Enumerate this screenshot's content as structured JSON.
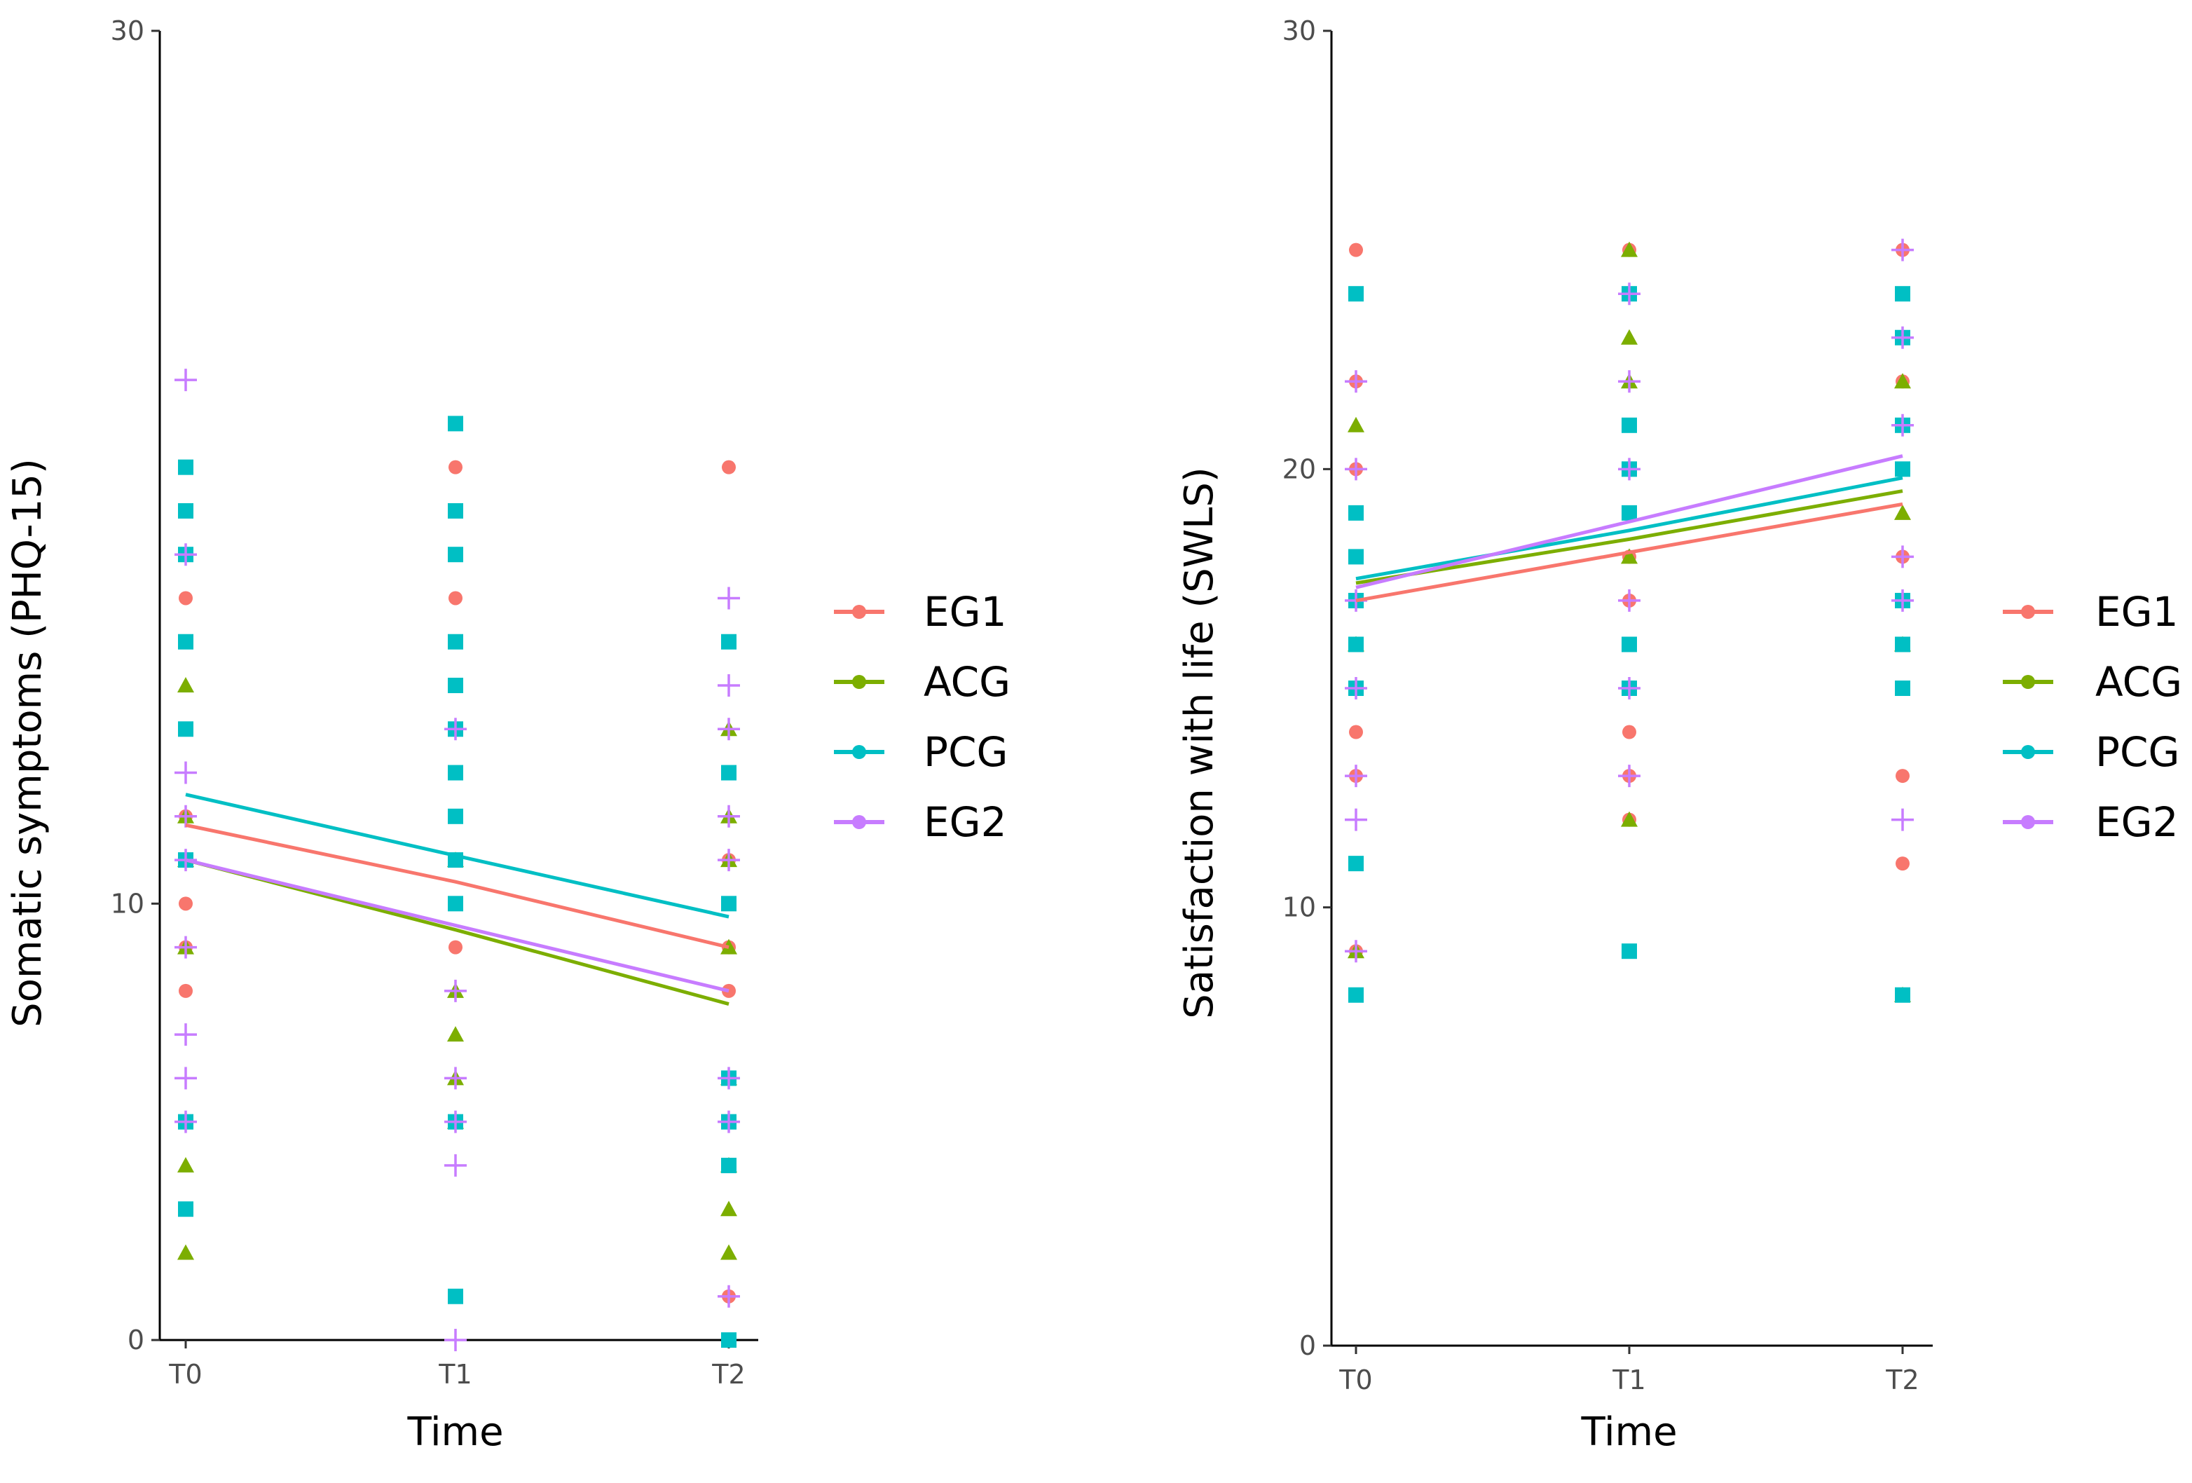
{
  "colors": {
    "EG1": "#F8766D",
    "ACG": "#7CAE00",
    "PCG": "#00BFC4",
    "EG2": "#C77CFF"
  },
  "chart_data": [
    {
      "type": "scatter",
      "title": "",
      "xlabel": "Time",
      "ylabel": "Somatic symptoms (PHQ-15)",
      "x_categories": [
        "T0",
        "T1",
        "T2"
      ],
      "ylim": [
        0,
        30
      ],
      "y_ticks": [
        "0",
        "10",
        "30"
      ],
      "legend": {
        "position": "right",
        "entries": [
          "EG1",
          "ACG",
          "PCG",
          "EG2"
        ]
      },
      "trend_lines": [
        {
          "name": "EG1",
          "values": [
            11.8,
            10.5,
            9.0
          ]
        },
        {
          "name": "ACG",
          "values": [
            11.0,
            9.4,
            7.7
          ]
        },
        {
          "name": "PCG",
          "values": [
            12.5,
            11.1,
            9.7
          ]
        },
        {
          "name": "EG2",
          "values": [
            11.0,
            9.5,
            8.0
          ]
        }
      ],
      "points": {
        "EG1": [
          [
            0,
            20
          ],
          [
            0,
            17
          ],
          [
            0,
            14
          ],
          [
            0,
            12
          ],
          [
            0,
            11
          ],
          [
            0,
            10
          ],
          [
            0,
            9
          ],
          [
            0,
            8
          ],
          [
            1,
            21
          ],
          [
            1,
            20
          ],
          [
            1,
            17
          ],
          [
            1,
            14
          ],
          [
            1,
            11
          ],
          [
            1,
            9
          ],
          [
            2,
            20
          ],
          [
            2,
            11
          ],
          [
            2,
            9
          ],
          [
            2,
            8
          ],
          [
            2,
            6
          ],
          [
            2,
            1
          ]
        ],
        "ACG": [
          [
            0,
            15
          ],
          [
            0,
            12
          ],
          [
            0,
            11
          ],
          [
            0,
            9
          ],
          [
            0,
            4
          ],
          [
            0,
            2
          ],
          [
            1,
            11
          ],
          [
            1,
            8
          ],
          [
            1,
            7
          ],
          [
            1,
            6
          ],
          [
            1,
            5
          ],
          [
            2,
            14
          ],
          [
            2,
            12
          ],
          [
            2,
            11
          ],
          [
            2,
            9
          ],
          [
            2,
            6
          ],
          [
            2,
            4
          ],
          [
            2,
            3
          ],
          [
            2,
            2
          ]
        ],
        "PCG": [
          [
            0,
            20
          ],
          [
            0,
            19
          ],
          [
            0,
            18
          ],
          [
            0,
            16
          ],
          [
            0,
            14
          ],
          [
            0,
            11
          ],
          [
            0,
            5
          ],
          [
            0,
            3
          ],
          [
            1,
            21
          ],
          [
            1,
            19
          ],
          [
            1,
            18
          ],
          [
            1,
            16
          ],
          [
            1,
            15
          ],
          [
            1,
            14
          ],
          [
            1,
            13
          ],
          [
            1,
            12
          ],
          [
            1,
            11
          ],
          [
            1,
            10
          ],
          [
            1,
            5
          ],
          [
            1,
            1
          ],
          [
            2,
            16
          ],
          [
            2,
            13
          ],
          [
            2,
            10
          ],
          [
            2,
            6
          ],
          [
            2,
            5
          ],
          [
            2,
            4
          ],
          [
            2,
            0
          ]
        ],
        "EG2": [
          [
            0,
            22
          ],
          [
            0,
            18
          ],
          [
            0,
            13
          ],
          [
            0,
            12
          ],
          [
            0,
            11
          ],
          [
            0,
            9
          ],
          [
            0,
            7
          ],
          [
            0,
            6
          ],
          [
            0,
            5
          ],
          [
            1,
            14
          ],
          [
            1,
            8
          ],
          [
            1,
            6
          ],
          [
            1,
            5
          ],
          [
            1,
            4
          ],
          [
            1,
            0
          ],
          [
            2,
            17
          ],
          [
            2,
            15
          ],
          [
            2,
            14
          ],
          [
            2,
            12
          ],
          [
            2,
            11
          ],
          [
            2,
            6
          ],
          [
            2,
            5
          ],
          [
            2,
            1
          ]
        ]
      }
    },
    {
      "type": "scatter",
      "title": "",
      "xlabel": "Time",
      "ylabel": "Satisfaction with life (SWLS)",
      "x_categories": [
        "T0",
        "T1",
        "T2"
      ],
      "ylim": [
        0,
        30
      ],
      "y_ticks": [
        "0",
        "10",
        "20",
        "30"
      ],
      "legend": {
        "position": "right",
        "entries": [
          "EG1",
          "ACG",
          "PCG",
          "EG2"
        ]
      },
      "trend_lines": [
        {
          "name": "EG1",
          "values": [
            17.0,
            18.1,
            19.2
          ]
        },
        {
          "name": "ACG",
          "values": [
            17.4,
            18.4,
            19.5
          ]
        },
        {
          "name": "PCG",
          "values": [
            17.5,
            18.6,
            19.8
          ]
        },
        {
          "name": "EG2",
          "values": [
            17.3,
            18.8,
            20.3
          ]
        }
      ],
      "points": {
        "EG1": [
          [
            0,
            25
          ],
          [
            0,
            24
          ],
          [
            0,
            22
          ],
          [
            0,
            20
          ],
          [
            0,
            18
          ],
          [
            0,
            16
          ],
          [
            0,
            14
          ],
          [
            0,
            13
          ],
          [
            0,
            9
          ],
          [
            1,
            25
          ],
          [
            1,
            24
          ],
          [
            1,
            21
          ],
          [
            1,
            18
          ],
          [
            1,
            17
          ],
          [
            1,
            15
          ],
          [
            1,
            14
          ],
          [
            1,
            13
          ],
          [
            1,
            12
          ],
          [
            2,
            25
          ],
          [
            2,
            22
          ],
          [
            2,
            18
          ],
          [
            2,
            15
          ],
          [
            2,
            13
          ],
          [
            2,
            11
          ]
        ],
        "ACG": [
          [
            0,
            21
          ],
          [
            0,
            16
          ],
          [
            0,
            9
          ],
          [
            1,
            25
          ],
          [
            1,
            23
          ],
          [
            1,
            22
          ],
          [
            1,
            18
          ],
          [
            1,
            12
          ],
          [
            2,
            22
          ],
          [
            2,
            19
          ],
          [
            2,
            16
          ],
          [
            2,
            8
          ]
        ],
        "PCG": [
          [
            0,
            24
          ],
          [
            0,
            19
          ],
          [
            0,
            18
          ],
          [
            0,
            17
          ],
          [
            0,
            16
          ],
          [
            0,
            15
          ],
          [
            0,
            11
          ],
          [
            0,
            8
          ],
          [
            1,
            24
          ],
          [
            1,
            21
          ],
          [
            1,
            20
          ],
          [
            1,
            19
          ],
          [
            1,
            16
          ],
          [
            1,
            15
          ],
          [
            1,
            9
          ],
          [
            2,
            24
          ],
          [
            2,
            23
          ],
          [
            2,
            21
          ],
          [
            2,
            20
          ],
          [
            2,
            17
          ],
          [
            2,
            16
          ],
          [
            2,
            15
          ],
          [
            2,
            8
          ]
        ],
        "EG2": [
          [
            0,
            22
          ],
          [
            0,
            20
          ],
          [
            0,
            17
          ],
          [
            0,
            15
          ],
          [
            0,
            13
          ],
          [
            0,
            12
          ],
          [
            0,
            9
          ],
          [
            1,
            24
          ],
          [
            1,
            22
          ],
          [
            1,
            20
          ],
          [
            1,
            17
          ],
          [
            1,
            15
          ],
          [
            1,
            13
          ],
          [
            2,
            25
          ],
          [
            2,
            23
          ],
          [
            2,
            21
          ],
          [
            2,
            18
          ],
          [
            2,
            17
          ],
          [
            2,
            12
          ]
        ]
      }
    }
  ]
}
